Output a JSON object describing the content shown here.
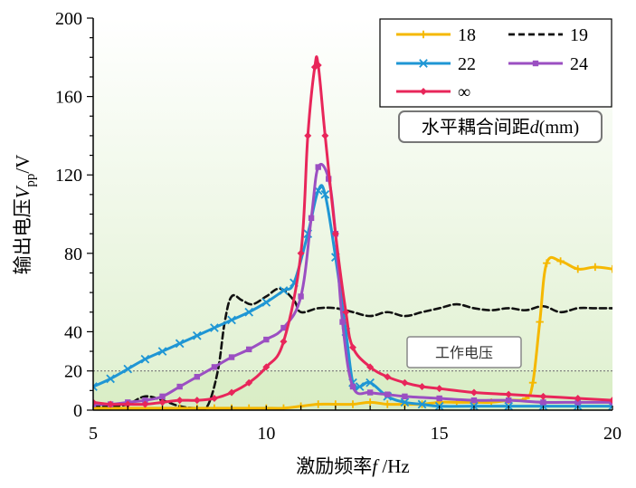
{
  "chart_data": {
    "type": "line",
    "xlabel": "激励频率f /Hz",
    "ylabel": "输出电压Vpp/V",
    "xlim": [
      5,
      20
    ],
    "ylim": [
      0,
      200
    ],
    "xticks": [
      "5",
      "10",
      "15",
      "20"
    ],
    "yticks": [
      "0",
      "20",
      "40",
      "80",
      "120",
      "160",
      "200"
    ],
    "legend_title": "水平耦合间距d(mm)",
    "legend_position": "top-right",
    "annotation": "工作电压",
    "threshold": 20,
    "series": [
      {
        "name": "18",
        "color": "#f5b800",
        "style": "solid",
        "marker": "plus",
        "x": [
          5,
          5.5,
          6,
          6.5,
          7,
          7.5,
          8,
          8.5,
          9,
          9.5,
          10,
          10.5,
          11,
          11.5,
          12,
          12.5,
          13,
          13.5,
          14,
          14.5,
          15,
          15.5,
          16,
          16.5,
          17,
          17.5,
          17.7,
          17.9,
          18.1,
          18.5,
          19,
          19.5,
          20
        ],
        "y": [
          1,
          1,
          1,
          1,
          1,
          1,
          1,
          1,
          1,
          1,
          1,
          1,
          2,
          3,
          3,
          3,
          4,
          3,
          3,
          3,
          4,
          4,
          4,
          4,
          5,
          6,
          14,
          45,
          75,
          76,
          72,
          73,
          72
        ]
      },
      {
        "name": "19",
        "color": "#111111",
        "style": "dashed",
        "marker": "none",
        "x": [
          5,
          5.5,
          6,
          6.5,
          7,
          7.5,
          8,
          8.3,
          8.6,
          8.8,
          9,
          9.3,
          9.6,
          10,
          10.4,
          10.8,
          11,
          11.5,
          12,
          12.5,
          13,
          13.5,
          14,
          14.5,
          15,
          15.5,
          16,
          16.5,
          17,
          17.5,
          18,
          18.5,
          19,
          19.5,
          20
        ],
        "y": [
          2,
          2,
          3,
          7,
          5,
          2,
          1,
          2,
          20,
          45,
          58,
          56,
          54,
          58,
          62,
          56,
          50,
          52,
          52,
          50,
          48,
          50,
          48,
          50,
          52,
          54,
          52,
          51,
          52,
          51,
          53,
          50,
          52,
          52,
          52
        ]
      },
      {
        "name": "22",
        "color": "#1f96d4",
        "style": "solid",
        "marker": "x",
        "x": [
          5,
          5.5,
          6,
          6.5,
          7,
          7.5,
          8,
          8.5,
          9,
          9.5,
          10,
          10.5,
          10.8,
          11.2,
          11.5,
          11.7,
          12,
          12.3,
          12.5,
          12.7,
          13,
          13.5,
          14,
          14.5,
          15,
          16,
          17,
          18,
          19,
          20
        ],
        "y": [
          12,
          16,
          21,
          26,
          30,
          34,
          38,
          42,
          46,
          50,
          55,
          61,
          65,
          90,
          112,
          110,
          78,
          40,
          14,
          12,
          14,
          7,
          4,
          3,
          2,
          2,
          2,
          2,
          2,
          2
        ]
      },
      {
        "name": "24",
        "color": "#9b4fc2",
        "style": "solid",
        "marker": "square",
        "x": [
          5,
          5.5,
          6,
          6.5,
          7,
          7.5,
          8,
          8.5,
          9,
          9.5,
          10,
          10.5,
          11,
          11.3,
          11.5,
          11.8,
          12,
          12.2,
          12.5,
          13,
          13.5,
          14,
          15,
          16,
          17,
          18,
          19,
          20
        ],
        "y": [
          3,
          3,
          4,
          5,
          7,
          12,
          17,
          22,
          27,
          31,
          36,
          42,
          58,
          98,
          124,
          118,
          90,
          45,
          12,
          9,
          8,
          7,
          6,
          5,
          5,
          4,
          4,
          4
        ]
      },
      {
        "name": "∞",
        "color": "#e8265a",
        "style": "solid",
        "marker": "diamond",
        "x": [
          5,
          5.5,
          6,
          6.5,
          7,
          7.5,
          8,
          8.5,
          9,
          9.5,
          10,
          10.5,
          11,
          11.2,
          11.4,
          11.5,
          11.7,
          12,
          12.3,
          12.5,
          13,
          13.5,
          14,
          14.5,
          15,
          16,
          17,
          18,
          19,
          20
        ],
        "y": [
          4,
          3,
          3,
          3,
          4,
          5,
          5,
          6,
          9,
          14,
          22,
          35,
          80,
          140,
          175,
          176,
          140,
          90,
          50,
          32,
          22,
          17,
          14,
          12,
          11,
          9,
          8,
          7,
          6,
          5
        ]
      }
    ]
  }
}
